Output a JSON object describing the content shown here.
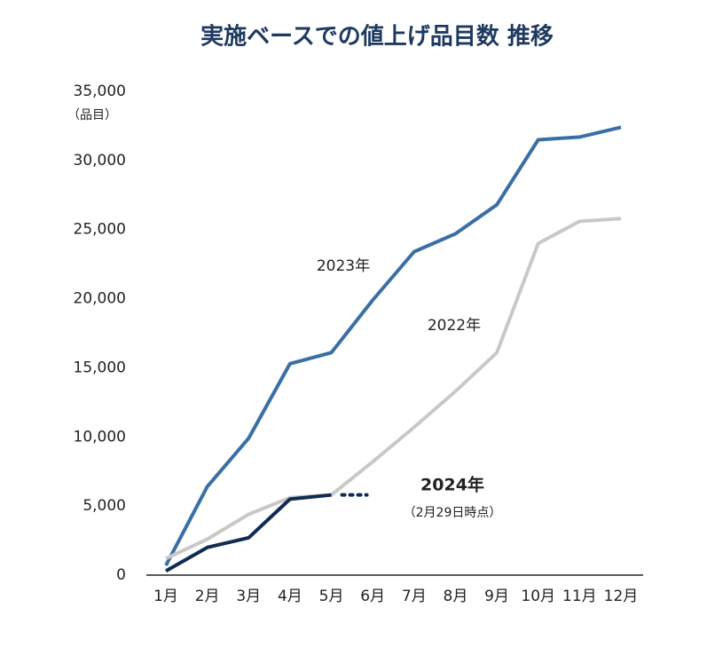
{
  "chart_data": {
    "type": "line",
    "title": "実施ベースでの値上げ品目数 推移",
    "y_label": "（品目）",
    "categories": [
      "1月",
      "2月",
      "3月",
      "4月",
      "5月",
      "6月",
      "7月",
      "8月",
      "9月",
      "10月",
      "11月",
      "12月"
    ],
    "series": [
      {
        "name": "2023年",
        "color": "#3a6fa5",
        "values": [
          700,
          6400,
          9900,
          15300,
          16100,
          19900,
          23400,
          24700,
          26800,
          31500,
          31700,
          32400
        ]
      },
      {
        "name": "2022年",
        "color": "#c8c8c8",
        "values": [
          1200,
          2600,
          4400,
          5600,
          5800,
          8200,
          10700,
          13300,
          16100,
          24000,
          25600,
          25800
        ]
      },
      {
        "name": "2024年",
        "color": "#0f2d52",
        "values": [
          300,
          2000,
          2700,
          5500,
          5800,
          null,
          null,
          null,
          null,
          null,
          null,
          null
        ]
      }
    ],
    "annotation": "（2月29日時点）",
    "ylim": [
      0,
      35000
    ],
    "yticks": [
      0,
      {
        "value": 5000,
        "label": "5,000"
      },
      {
        "value": 10000,
        "label": "10,000"
      },
      {
        "value": 15000,
        "label": "15,000"
      },
      {
        "value": 20000,
        "label": "20,000"
      },
      {
        "value": 25000,
        "label": "25,000"
      },
      {
        "value": 30000,
        "label": "30,000"
      },
      {
        "value": 35000,
        "label": "35,000"
      }
    ],
    "grid": false
  }
}
